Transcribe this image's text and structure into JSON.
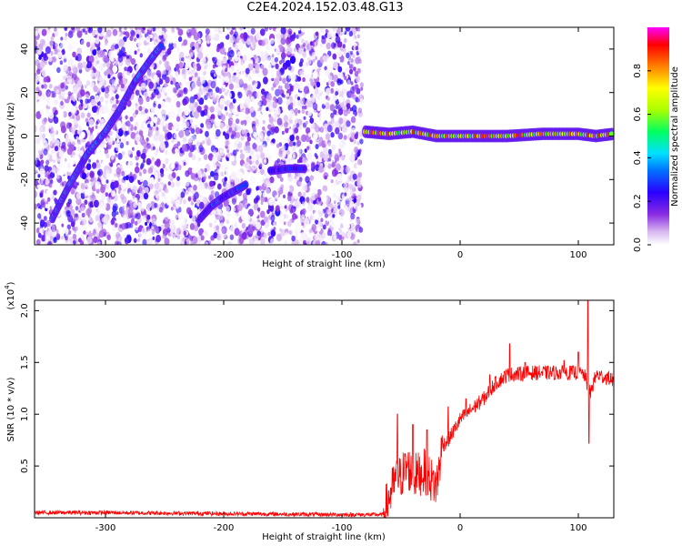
{
  "title": "C2E4.2024.152.03.48.G13",
  "chart_data": [
    {
      "type": "heatmap",
      "xlabel": "Height of straight line (km)",
      "ylabel": "Frequency (Hz)",
      "xlim": [
        -360,
        130
      ],
      "ylim": [
        -50,
        50
      ],
      "x_ticks": [
        -300,
        -200,
        -100,
        0,
        100
      ],
      "y_ticks": [
        -40,
        -20,
        0,
        20,
        40
      ],
      "colorbar": {
        "label": "Normalized spectral amplitude",
        "range": [
          0,
          1
        ],
        "ticks": [
          "0.0",
          "0.2",
          "0.4",
          "0.6",
          "0.8"
        ],
        "colormap": [
          "#ffffff",
          "#d8b8f0",
          "#8a2be2",
          "#2a00ff",
          "#0070ff",
          "#00e0ff",
          "#00ff60",
          "#aaff00",
          "#ffff00",
          "#ff8000",
          "#ff0000",
          "#ff00ff"
        ]
      },
      "noise_region_x": [
        -360,
        -83
      ],
      "features": [
        {
          "name": "",
          "points": [
            [
              -345,
              -38
            ],
            [
              -330,
              -22
            ],
            [
              -315,
              -8
            ],
            [
              -300,
              2
            ],
            [
              -288,
              12
            ],
            [
              -275,
              25
            ],
            [
              -262,
              35
            ],
            [
              -252,
              42
            ]
          ],
          "peak": 0.45
        },
        {
          "name": "",
          "points": [
            [
              -220,
              -38
            ],
            [
              -210,
              -32
            ],
            [
              -200,
              -28
            ],
            [
              -190,
              -25
            ],
            [
              -180,
              -22
            ]
          ],
          "peak": 0.35
        },
        {
          "name": "",
          "points": [
            [
              -160,
              -16
            ],
            [
              -145,
              -15
            ],
            [
              -130,
              -15
            ]
          ],
          "peak": 0.3
        },
        {
          "name": "",
          "points": [
            [
              -80,
              2
            ],
            [
              -60,
              1
            ],
            [
              -40,
              2
            ],
            [
              -20,
              0
            ],
            [
              0,
              0
            ],
            [
              40,
              0
            ],
            [
              70,
              1
            ],
            [
              100,
              1
            ],
            [
              115,
              0
            ],
            [
              130,
              1
            ]
          ],
          "peak": 0.9
        }
      ]
    },
    {
      "type": "line",
      "xlabel": "Height of straight line (km)",
      "ylabel": "SNR (10 * v/v)",
      "y_scale_label": "(x10",
      "y_scale_exp": "4",
      "xlim": [
        -360,
        130
      ],
      "ylim": [
        0,
        2.1
      ],
      "x_ticks": [
        -300,
        -200,
        -100,
        0,
        100
      ],
      "y_ticks": [
        "0.5",
        "1.0",
        "1.5",
        "2.0"
      ],
      "series": [
        {
          "color": "#ff0000",
          "points": [
            [
              -360,
              0.05
            ],
            [
              -300,
              0.05
            ],
            [
              -200,
              0.04
            ],
            [
              -100,
              0.03
            ],
            [
              -65,
              0.03
            ],
            [
              -60,
              0.2
            ],
            [
              -55,
              0.35
            ],
            [
              -50,
              0.4
            ],
            [
              -45,
              0.5
            ],
            [
              -40,
              0.4
            ],
            [
              -30,
              0.45
            ],
            [
              -20,
              0.3
            ],
            [
              -15,
              0.7
            ],
            [
              -10,
              0.75
            ],
            [
              -5,
              0.85
            ],
            [
              0,
              0.95
            ],
            [
              10,
              1.05
            ],
            [
              20,
              1.15
            ],
            [
              30,
              1.3
            ],
            [
              40,
              1.38
            ],
            [
              60,
              1.4
            ],
            [
              80,
              1.4
            ],
            [
              100,
              1.4
            ],
            [
              105,
              1.38
            ],
            [
              110,
              1.2
            ],
            [
              115,
              1.38
            ],
            [
              125,
              1.35
            ],
            [
              130,
              1.33
            ]
          ],
          "noise": 0.06,
          "spikes": [
            [
              -53,
              1.0
            ],
            [
              -40,
              0.9
            ],
            [
              -28,
              0.85
            ],
            [
              -10,
              1.07
            ],
            [
              5,
              1.15
            ],
            [
              25,
              1.38
            ],
            [
              42,
              1.68
            ],
            [
              55,
              1.5
            ],
            [
              88,
              1.52
            ],
            [
              100,
              1.6
            ],
            [
              108,
              2.13
            ],
            [
              109,
              0.72
            ]
          ]
        }
      ]
    }
  ]
}
